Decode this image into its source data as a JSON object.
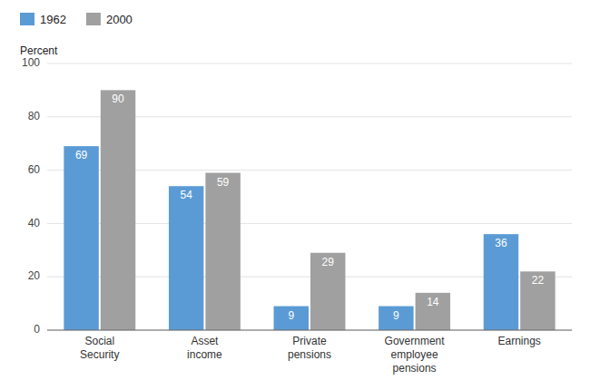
{
  "chart_data": {
    "type": "bar",
    "y_label": "Percent",
    "categories": [
      "Social\nSecurity",
      "Asset\nincome",
      "Private\npensions",
      "Government\nemployee\npensions",
      "Earnings"
    ],
    "series": [
      {
        "name": "1962",
        "color": "#5b9bd5",
        "values": [
          69,
          54,
          9,
          9,
          36
        ]
      },
      {
        "name": "2000",
        "color": "#a0a0a0",
        "values": [
          90,
          59,
          29,
          14,
          22
        ]
      }
    ],
    "ylim": [
      0,
      100
    ],
    "yticks": [
      0,
      20,
      40,
      60,
      80,
      100
    ],
    "grid": true,
    "legend": "top left",
    "data_labels": true
  }
}
